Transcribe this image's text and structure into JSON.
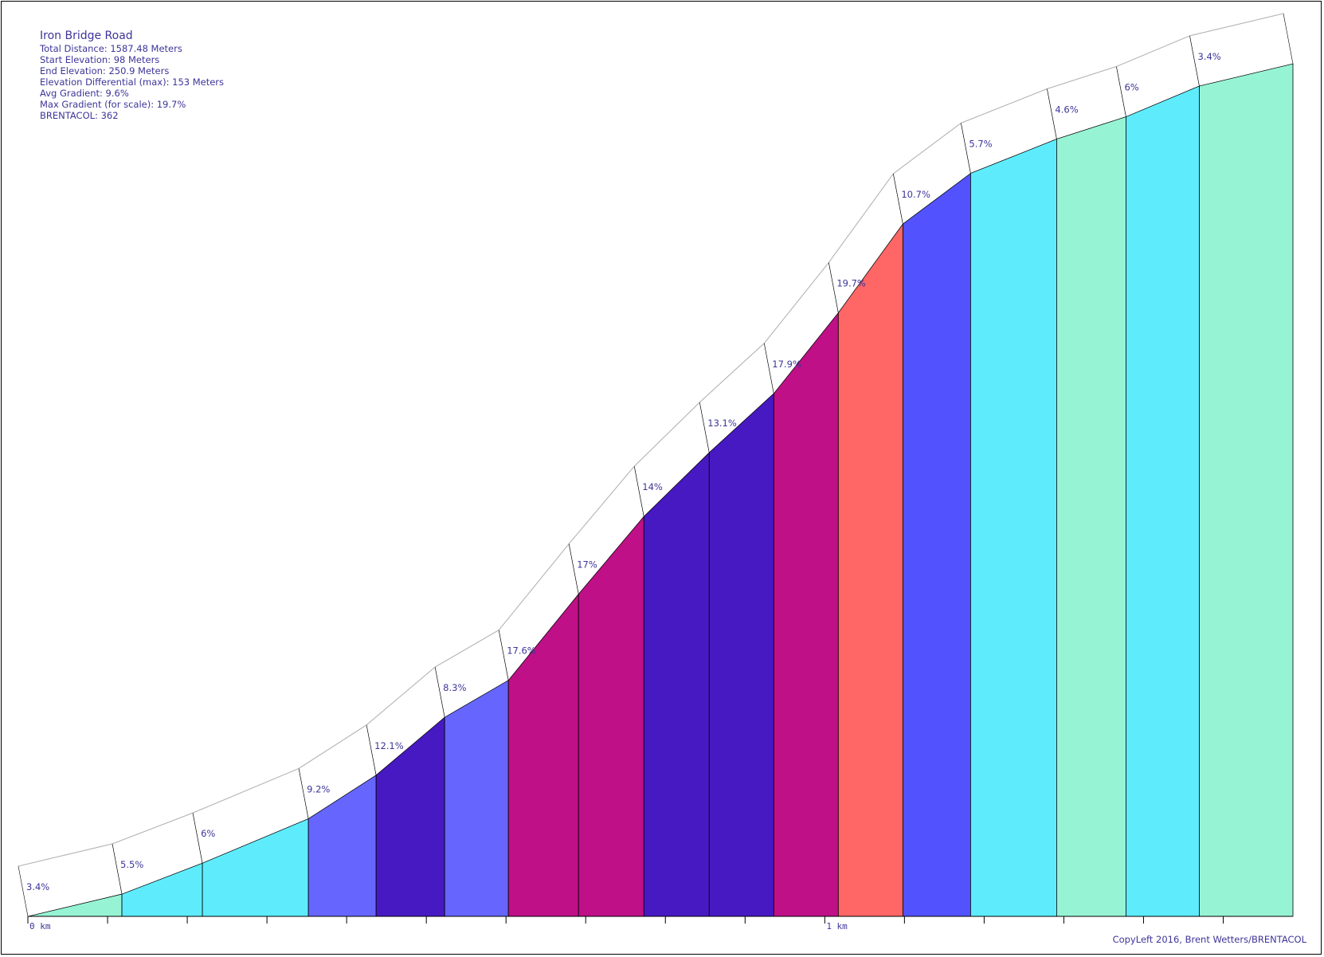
{
  "info": {
    "title": "Iron Bridge Road",
    "total_distance": "Total Distance: 1587.48 Meters",
    "start_elevation": "Start Elevation: 98 Meters",
    "end_elevation": "End Elevation: 250.9 Meters",
    "elevation_differential": "Elevation Differential (max): 153 Meters",
    "avg_gradient": "Avg Gradient: 9.6%",
    "max_gradient": "Max Gradient (for scale): 19.7%",
    "brentacol": "BRENTACOL: 362"
  },
  "copyleft": "CopyLeft 2016, Brent Wetters/BRENTACOL",
  "chart_data": {
    "type": "area",
    "title": "Iron Bridge Road",
    "x_unit": "km",
    "x_range_m": [
      0,
      1587.48
    ],
    "x_tick_labels": [
      {
        "km": 0,
        "label": "0 km"
      },
      {
        "km": 1,
        "label": "1 km"
      }
    ],
    "x_minor_tick_step_m": 100,
    "segments": [
      {
        "start_m": 0,
        "end_m": 118,
        "gradient_pct": 3.4,
        "label": "3.4%",
        "color": "#96f4d5"
      },
      {
        "start_m": 118,
        "end_m": 219,
        "gradient_pct": 5.5,
        "label": "5.5%",
        "color": "#5eecfd"
      },
      {
        "start_m": 219,
        "end_m": 352,
        "gradient_pct": 6,
        "label": "6%",
        "color": "#5eecfd"
      },
      {
        "start_m": 352,
        "end_m": 437,
        "gradient_pct": 9.2,
        "label": "9.2%",
        "color": "#6666ff"
      },
      {
        "start_m": 437,
        "end_m": 523,
        "gradient_pct": 12.1,
        "label": "12.1%",
        "color": "#4719c2"
      },
      {
        "start_m": 523,
        "end_m": 603,
        "gradient_pct": 8.3,
        "label": "8.3%",
        "color": "#6666ff"
      },
      {
        "start_m": 603,
        "end_m": 691,
        "gradient_pct": 17.6,
        "label": "17.6%",
        "color": "#bf1087"
      },
      {
        "start_m": 691,
        "end_m": 773,
        "gradient_pct": 17,
        "label": "17%",
        "color": "#bf1087"
      },
      {
        "start_m": 773,
        "end_m": 855,
        "gradient_pct": 14,
        "label": "14%",
        "color": "#4719c2"
      },
      {
        "start_m": 855,
        "end_m": 936,
        "gradient_pct": 13.1,
        "label": "13.1%",
        "color": "#4719c2"
      },
      {
        "start_m": 936,
        "end_m": 1017,
        "gradient_pct": 17.9,
        "label": "17.9%",
        "color": "#bf1087"
      },
      {
        "start_m": 1017,
        "end_m": 1098,
        "gradient_pct": 19.7,
        "label": "19.7%",
        "color": "#ff6666"
      },
      {
        "start_m": 1098,
        "end_m": 1183,
        "gradient_pct": 10.7,
        "label": "10.7%",
        "color": "#5252ff"
      },
      {
        "start_m": 1183,
        "end_m": 1291,
        "gradient_pct": 5.7,
        "label": "5.7%",
        "color": "#5eecfd"
      },
      {
        "start_m": 1291,
        "end_m": 1378,
        "gradient_pct": 4.6,
        "label": "4.6%",
        "color": "#96f4d5"
      },
      {
        "start_m": 1378,
        "end_m": 1470,
        "gradient_pct": 6,
        "label": "6%",
        "color": "#5eecfd"
      },
      {
        "start_m": 1470,
        "end_m": 1587.48,
        "gradient_pct": 3.4,
        "label": "3.4%",
        "color": "#96f4d5"
      }
    ]
  }
}
